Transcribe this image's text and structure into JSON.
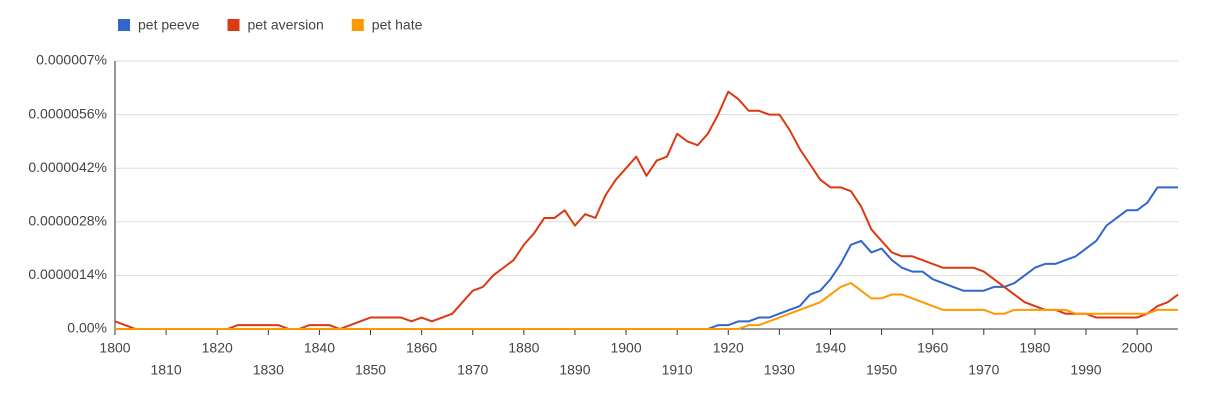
{
  "chart_data": {
    "type": "line",
    "x": [
      1800,
      1802,
      1804,
      1806,
      1808,
      1810,
      1812,
      1814,
      1816,
      1818,
      1820,
      1822,
      1824,
      1826,
      1828,
      1830,
      1832,
      1834,
      1836,
      1838,
      1840,
      1842,
      1844,
      1846,
      1848,
      1850,
      1852,
      1854,
      1856,
      1858,
      1860,
      1862,
      1864,
      1866,
      1868,
      1870,
      1872,
      1874,
      1876,
      1878,
      1880,
      1882,
      1884,
      1886,
      1888,
      1890,
      1892,
      1894,
      1896,
      1898,
      1900,
      1902,
      1904,
      1906,
      1908,
      1910,
      1912,
      1914,
      1916,
      1918,
      1920,
      1922,
      1924,
      1926,
      1928,
      1930,
      1932,
      1934,
      1936,
      1938,
      1940,
      1942,
      1944,
      1946,
      1948,
      1950,
      1952,
      1954,
      1956,
      1958,
      1960,
      1962,
      1964,
      1966,
      1968,
      1970,
      1972,
      1974,
      1976,
      1978,
      1980,
      1982,
      1984,
      1986,
      1988,
      1990,
      1992,
      1994,
      1996,
      1998,
      2000,
      2002,
      2004,
      2006,
      2008
    ],
    "series": [
      {
        "name": "pet peeve",
        "color": "#3366cc",
        "values": [
          0,
          0,
          0,
          0,
          0,
          0,
          0,
          0,
          0,
          0,
          0,
          0,
          0,
          0,
          0,
          0,
          0,
          0,
          0,
          0,
          0,
          0,
          0,
          0,
          0,
          0,
          0,
          0,
          0,
          0,
          0,
          0,
          0,
          0,
          0,
          0,
          0,
          0,
          0,
          0,
          0,
          0,
          0,
          0,
          0,
          0,
          0,
          0,
          0,
          0,
          0,
          0,
          0,
          0,
          0,
          0,
          0,
          0,
          0,
          1e-07,
          1e-07,
          2e-07,
          2e-07,
          3e-07,
          3e-07,
          4e-07,
          5e-07,
          6e-07,
          9e-07,
          1e-06,
          1.3e-06,
          1.7e-06,
          2.2e-06,
          2.3e-06,
          2e-06,
          2.1e-06,
          1.8e-06,
          1.6e-06,
          1.5e-06,
          1.5e-06,
          1.3e-06,
          1.2e-06,
          1.1e-06,
          1e-06,
          1e-06,
          1e-06,
          1.1e-06,
          1.1e-06,
          1.2e-06,
          1.4e-06,
          1.6e-06,
          1.7e-06,
          1.7e-06,
          1.8e-06,
          1.9e-06,
          2.1e-06,
          2.3e-06,
          2.7e-06,
          2.9e-06,
          3.1e-06,
          3.1e-06,
          3.3e-06,
          3.7e-06,
          3.7e-06,
          3.7e-06
        ]
      },
      {
        "name": "pet aversion",
        "color": "#dc3912",
        "values": [
          2e-07,
          1e-07,
          0,
          0,
          0,
          0,
          0,
          0,
          0,
          0,
          0,
          0,
          1e-07,
          1e-07,
          1e-07,
          1e-07,
          1e-07,
          0,
          0,
          1e-07,
          1e-07,
          1e-07,
          0,
          1e-07,
          2e-07,
          3e-07,
          3e-07,
          3e-07,
          3e-07,
          2e-07,
          3e-07,
          2e-07,
          3e-07,
          4e-07,
          7e-07,
          1e-06,
          1.1e-06,
          1.4e-06,
          1.6e-06,
          1.8e-06,
          2.2e-06,
          2.5e-06,
          2.9e-06,
          2.9e-06,
          3.1e-06,
          2.7e-06,
          3e-06,
          2.9e-06,
          3.5e-06,
          3.9e-06,
          4.2e-06,
          4.5e-06,
          4e-06,
          4.4e-06,
          4.5e-06,
          5.1e-06,
          4.9e-06,
          4.8e-06,
          5.1e-06,
          5.6e-06,
          6.2e-06,
          6e-06,
          5.7e-06,
          5.7e-06,
          5.6e-06,
          5.6e-06,
          5.2e-06,
          4.7e-06,
          4.3e-06,
          3.9e-06,
          3.7e-06,
          3.7e-06,
          3.6e-06,
          3.2e-06,
          2.6e-06,
          2.3e-06,
          2e-06,
          1.9e-06,
          1.9e-06,
          1.8e-06,
          1.7e-06,
          1.6e-06,
          1.6e-06,
          1.6e-06,
          1.6e-06,
          1.5e-06,
          1.3e-06,
          1.1e-06,
          9e-07,
          7e-07,
          6e-07,
          5e-07,
          5e-07,
          4e-07,
          4e-07,
          4e-07,
          3e-07,
          3e-07,
          3e-07,
          3e-07,
          3e-07,
          4e-07,
          6e-07,
          7e-07,
          9e-07
        ]
      },
      {
        "name": "pet hate",
        "color": "#ff9900",
        "values": [
          0,
          0,
          0,
          0,
          0,
          0,
          0,
          0,
          0,
          0,
          0,
          0,
          0,
          0,
          0,
          0,
          0,
          0,
          0,
          0,
          0,
          0,
          0,
          0,
          0,
          0,
          0,
          0,
          0,
          0,
          0,
          0,
          0,
          0,
          0,
          0,
          0,
          0,
          0,
          0,
          0,
          0,
          0,
          0,
          0,
          0,
          0,
          0,
          0,
          0,
          0,
          0,
          0,
          0,
          0,
          0,
          0,
          0,
          0,
          0,
          0,
          0,
          1e-07,
          1e-07,
          2e-07,
          3e-07,
          4e-07,
          5e-07,
          6e-07,
          7e-07,
          9e-07,
          1.1e-06,
          1.2e-06,
          1e-06,
          8e-07,
          8e-07,
          9e-07,
          9e-07,
          8e-07,
          7e-07,
          6e-07,
          5e-07,
          5e-07,
          5e-07,
          5e-07,
          5e-07,
          4e-07,
          4e-07,
          5e-07,
          5e-07,
          5e-07,
          5e-07,
          5e-07,
          5e-07,
          4e-07,
          4e-07,
          4e-07,
          4e-07,
          4e-07,
          4e-07,
          4e-07,
          4e-07,
          5e-07,
          5e-07,
          5e-07
        ]
      }
    ],
    "xlim": [
      1800,
      2008
    ],
    "xticks": [
      1800,
      1810,
      1820,
      1830,
      1840,
      1850,
      1860,
      1870,
      1880,
      1890,
      1900,
      1910,
      1920,
      1930,
      1940,
      1950,
      1960,
      1970,
      1980,
      1990,
      2000
    ],
    "ylim": [
      0,
      7e-06
    ],
    "yticks": [
      {
        "value": 0,
        "label": "0.00%"
      },
      {
        "value": 1.4e-06,
        "label": "0.0000014%"
      },
      {
        "value": 2.8e-06,
        "label": "0.0000028%"
      },
      {
        "value": 4.2e-06,
        "label": "0.0000042%"
      },
      {
        "value": 5.6e-06,
        "label": "0.0000056%"
      },
      {
        "value": 7e-06,
        "label": "0.000007%"
      }
    ],
    "grid": true,
    "legend": "top-left"
  }
}
